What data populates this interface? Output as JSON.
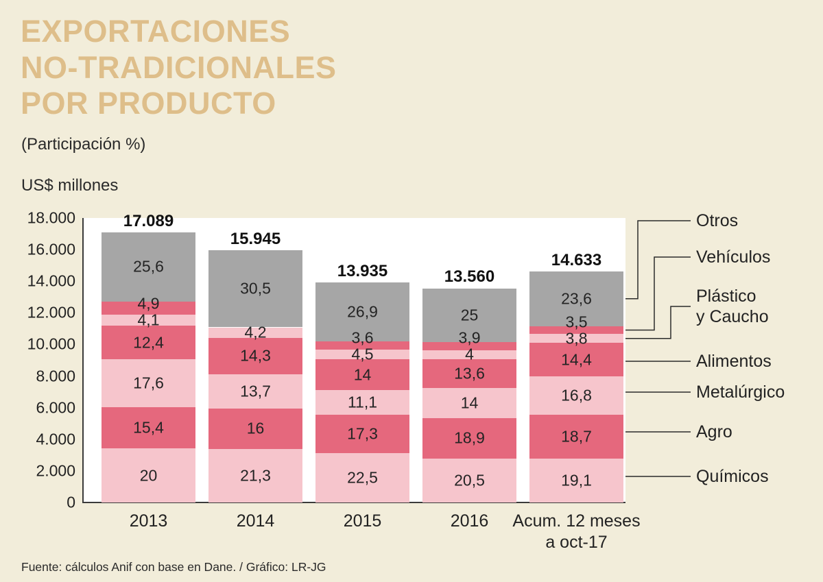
{
  "title": {
    "line1": "EXPORTACIONES",
    "line2": "NO-TRADICIONALES",
    "line3": "POR PRODUCTO"
  },
  "subtitle": "(Participación %)",
  "axis_title": "US$ millones",
  "footer": "Fuente: cálculos Anif con base en Dane. / Gráfico: LR-JG",
  "colors": {
    "background": "#f2edda",
    "title": "#debe8a",
    "gray": "#a6a6a6",
    "dark_pink": "#e5687d",
    "light_pink": "#f6c5cc",
    "text": "#222222",
    "line": "#2b2b2b"
  },
  "chart_data": {
    "type": "bar",
    "stacked": true,
    "title": "EXPORTACIONES NO-TRADICIONALES POR PRODUCTO",
    "subtitle": "(Participación %)",
    "ylabel": "US$ millones",
    "ylim": [
      0,
      18000
    ],
    "grid": false,
    "legend_position": "right",
    "yticks": [
      {
        "value": 18000,
        "label": "18.000"
      },
      {
        "value": 16000,
        "label": "16.000"
      },
      {
        "value": 14000,
        "label": "14.000"
      },
      {
        "value": 12000,
        "label": "12.000"
      },
      {
        "value": 10000,
        "label": "10.000"
      },
      {
        "value": 8000,
        "label": "8.000"
      },
      {
        "value": 6000,
        "label": "6.000"
      },
      {
        "value": 4000,
        "label": "4.000"
      },
      {
        "value": 2000,
        "label": "2.000"
      },
      {
        "value": 0,
        "label": "0"
      }
    ],
    "categories": [
      "2013",
      "2014",
      "2015",
      "2016",
      "Acum. 12 meses\na oct-17"
    ],
    "series_order_bottom_to_top": [
      "Químicos",
      "Agro",
      "Metalúrgico",
      "Alimentos",
      "Plástico y Caucho",
      "Vehículos",
      "Otros"
    ],
    "bars": [
      {
        "category": "2013",
        "total": 17089,
        "total_label": "17.089",
        "segments": [
          {
            "series": "Químicos",
            "value": 20,
            "label": "20",
            "color": "light_pink"
          },
          {
            "series": "Agro",
            "value": 15.4,
            "label": "15,4",
            "color": "dark_pink"
          },
          {
            "series": "Metalúrgico",
            "value": 17.6,
            "label": "17,6",
            "color": "light_pink"
          },
          {
            "series": "Alimentos",
            "value": 12.4,
            "label": "12,4",
            "color": "dark_pink"
          },
          {
            "series": "Plástico y Caucho",
            "value": 4.1,
            "label": "4,1",
            "color": "light_pink"
          },
          {
            "series": "Vehículos",
            "value": 4.9,
            "label": "4,9",
            "color": "dark_pink"
          },
          {
            "series": "Otros",
            "value": 25.6,
            "label": "25,6",
            "color": "gray"
          }
        ]
      },
      {
        "category": "2014",
        "total": 15945,
        "total_label": "15.945",
        "segments": [
          {
            "series": "Químicos",
            "value": 21.3,
            "label": "21,3",
            "color": "light_pink"
          },
          {
            "series": "Agro",
            "value": 16,
            "label": "16",
            "color": "dark_pink"
          },
          {
            "series": "Metalúrgico",
            "value": 13.7,
            "label": "13,7",
            "color": "light_pink"
          },
          {
            "series": "Alimentos",
            "value": 14.3,
            "label": "14,3",
            "color": "dark_pink"
          },
          {
            "series": "Plástico y Caucho",
            "value": 4.2,
            "label": "4,2",
            "color": "light_pink"
          },
          {
            "series": "Otros",
            "value": 30.5,
            "label": "30,5",
            "color": "gray"
          }
        ]
      },
      {
        "category": "2015",
        "total": 13935,
        "total_label": "13.935",
        "segments": [
          {
            "series": "Químicos",
            "value": 22.5,
            "label": "22,5",
            "color": "light_pink"
          },
          {
            "series": "Agro",
            "value": 17.3,
            "label": "17,3",
            "color": "dark_pink"
          },
          {
            "series": "Metalúrgico",
            "value": 11.1,
            "label": "11,1",
            "color": "light_pink"
          },
          {
            "series": "Alimentos",
            "value": 14,
            "label": "14",
            "color": "dark_pink"
          },
          {
            "series": "Plástico y Caucho",
            "value": 4.5,
            "label": "4,5",
            "color": "light_pink"
          },
          {
            "series": "Vehículos",
            "value": 3.6,
            "label": "3,6",
            "color": "dark_pink"
          },
          {
            "series": "Otros",
            "value": 26.9,
            "label": "26,9",
            "color": "gray"
          }
        ]
      },
      {
        "category": "2016",
        "total": 13560,
        "total_label": "13.560",
        "segments": [
          {
            "series": "Químicos",
            "value": 20.5,
            "label": "20,5",
            "color": "light_pink"
          },
          {
            "series": "Agro",
            "value": 18.9,
            "label": "18,9",
            "color": "dark_pink"
          },
          {
            "series": "Metalúrgico",
            "value": 14,
            "label": "14",
            "color": "light_pink"
          },
          {
            "series": "Alimentos",
            "value": 13.6,
            "label": "13,6",
            "color": "dark_pink"
          },
          {
            "series": "Plástico y Caucho",
            "value": 4,
            "label": "4",
            "color": "light_pink"
          },
          {
            "series": "Vehículos",
            "value": 3.9,
            "label": "3,9",
            "color": "dark_pink"
          },
          {
            "series": "Otros",
            "value": 25,
            "label": "25",
            "color": "gray"
          }
        ]
      },
      {
        "category": "Acum. 12 meses\na oct-17",
        "total": 14633,
        "total_label": "14.633",
        "segments": [
          {
            "series": "Químicos",
            "value": 19.1,
            "label": "19,1",
            "color": "light_pink"
          },
          {
            "series": "Agro",
            "value": 18.7,
            "label": "18,7",
            "color": "dark_pink"
          },
          {
            "series": "Metalúrgico",
            "value": 16.8,
            "label": "16,8",
            "color": "light_pink"
          },
          {
            "series": "Alimentos",
            "value": 14.4,
            "label": "14,4",
            "color": "dark_pink"
          },
          {
            "series": "Plástico y Caucho",
            "value": 3.8,
            "label": "3,8",
            "color": "light_pink"
          },
          {
            "series": "Vehículos",
            "value": 3.5,
            "label": "3,5",
            "color": "dark_pink"
          },
          {
            "series": "Otros",
            "value": 23.6,
            "label": "23,6",
            "color": "gray"
          }
        ]
      }
    ],
    "legend": [
      {
        "label": "Otros",
        "series": "Otros"
      },
      {
        "label": "Vehículos",
        "series": "Vehículos"
      },
      {
        "label": "Plástico\ny Caucho",
        "series": "Plástico y Caucho"
      },
      {
        "label": "Alimentos",
        "series": "Alimentos"
      },
      {
        "label": "Metalúrgico",
        "series": "Metalúrgico"
      },
      {
        "label": "Agro",
        "series": "Agro"
      },
      {
        "label": "Químicos",
        "series": "Químicos"
      }
    ]
  }
}
